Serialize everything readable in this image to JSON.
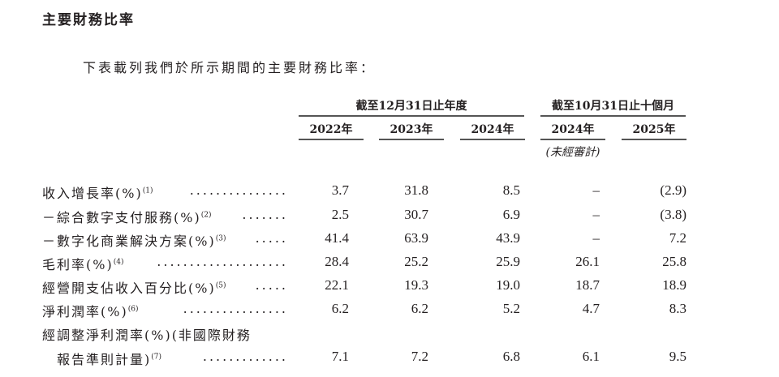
{
  "title": "主要財務比率",
  "intro": "下表載列我們於所示期間的主要財務比率：",
  "groups": [
    "截至12月31日止年度",
    "截至10月31日止十個月"
  ],
  "years": [
    "2022年",
    "2023年",
    "2024年",
    "2024年",
    "2025年"
  ],
  "unaudited": "(未經審計)",
  "rows": [
    {
      "label": "收入增長率(%)",
      "note": "(1)",
      "dots": "...............",
      "values": [
        "3.7",
        "31.8",
        "8.5",
        "–",
        "(2.9)"
      ]
    },
    {
      "label": "－綜合數字支付服務(%)",
      "note": "(2)",
      "dots": ".......",
      "values": [
        "2.5",
        "30.7",
        "6.9",
        "–",
        "(3.8)"
      ]
    },
    {
      "label": "－數字化商業解決方案(%)",
      "note": "(3)",
      "dots": ".....",
      "values": [
        "41.4",
        "63.9",
        "43.9",
        "–",
        "7.2"
      ]
    },
    {
      "label": "毛利率(%)",
      "note": "(4)",
      "dots": "....................",
      "values": [
        "28.4",
        "25.2",
        "25.9",
        "26.1",
        "25.8"
      ]
    },
    {
      "label": "經營開支佔收入百分比(%)",
      "note": "(5)",
      "dots": ".....",
      "values": [
        "22.1",
        "19.3",
        "19.0",
        "18.7",
        "18.9"
      ]
    },
    {
      "label": "淨利潤率(%)",
      "note": "(6)",
      "dots": "................",
      "values": [
        "6.2",
        "6.2",
        "5.2",
        "4.7",
        "8.3"
      ]
    },
    {
      "label": "經調整淨利潤率(%)(非國際財務",
      "note": "",
      "dots": "",
      "values": [
        "",
        "",
        "",
        "",
        ""
      ]
    },
    {
      "label": "　報告準則計量)",
      "note": "(7)",
      "dots": ".............",
      "values": [
        "7.1",
        "7.2",
        "6.8",
        "6.1",
        "9.5"
      ]
    }
  ]
}
